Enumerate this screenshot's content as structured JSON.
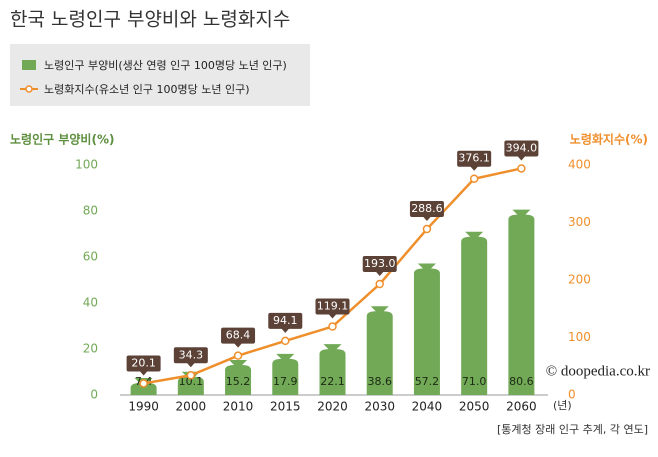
{
  "chart_data": {
    "type": "bar-line",
    "title": "한국 노령인구 부양비와 노령화지수",
    "y_label": "노령인구 부양비(%)",
    "y2_label": "노령화지수(%)",
    "x_label": "(년)",
    "source": "[통계청 장래 인구 추계, 각 연도]",
    "watermark": "© doopedia.co.kr",
    "categories": [
      "1990",
      "2000",
      "2010",
      "2015",
      "2020",
      "2030",
      "2040",
      "2050",
      "2060"
    ],
    "series": [
      {
        "name": "노령인구 부양비(생산 연령 인구 100명당 노년 인구)",
        "color": "#72a957",
        "values": [
          7.4,
          10.1,
          15.2,
          17.9,
          22.1,
          38.6,
          57.2,
          71.0,
          80.6
        ],
        "value_labels": [
          "7.4",
          "10.1",
          "15.2",
          "17.9",
          "22.1",
          "38.6",
          "57.2",
          "71.0",
          "80.6"
        ]
      },
      {
        "name": "노령화지수(유소년 인구 100명당 노년 인구)",
        "color": "#ef8f2c",
        "axis": "y2",
        "values": [
          20.1,
          34.3,
          68.4,
          94.1,
          119.1,
          193.0,
          288.6,
          376.1,
          394.0
        ],
        "value_labels": [
          "20.1",
          "34.3",
          "68.4",
          "94.1",
          "119.1",
          "193.0",
          "288.6",
          "376.1",
          "394.0"
        ]
      }
    ],
    "ylim": [
      0,
      100
    ],
    "yticks": [
      0,
      20,
      40,
      60,
      80,
      100
    ],
    "y2lim": [
      0,
      400
    ],
    "y2ticks": [
      0,
      100,
      200,
      300,
      400
    ]
  }
}
